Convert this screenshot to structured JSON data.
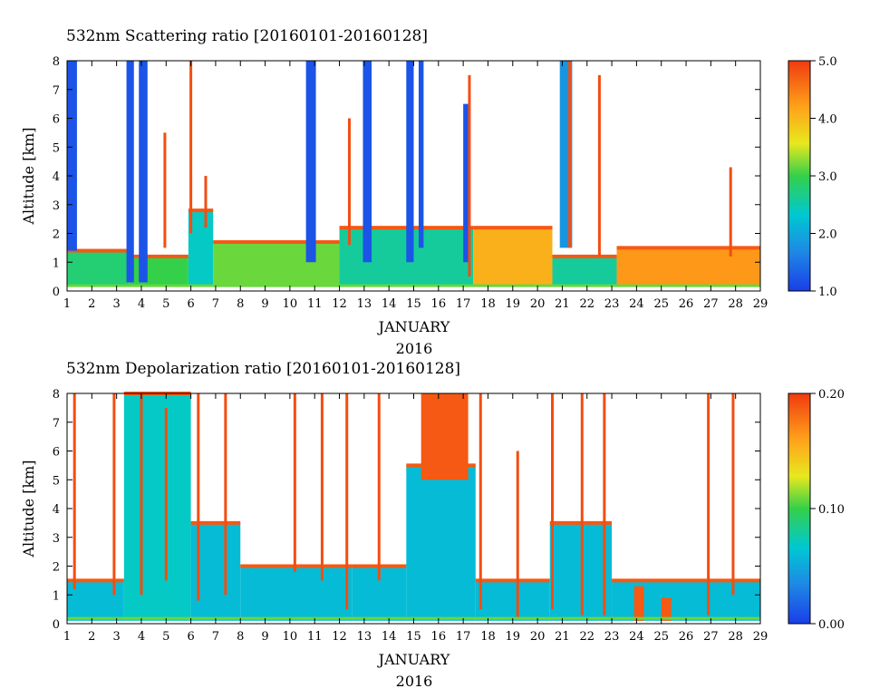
{
  "chart_data": [
    {
      "type": "heatmap",
      "title": "532nm Scattering ratio [20160101-20160128]",
      "xlabel": "JANUARY",
      "xlabel2": "2016",
      "ylabel": "Altitude [km]",
      "x_ticks": [
        "1",
        "2",
        "3",
        "4",
        "5",
        "6",
        "7",
        "8",
        "9",
        "10",
        "11",
        "12",
        "13",
        "14",
        "15",
        "16",
        "17",
        "18",
        "19",
        "20",
        "21",
        "22",
        "23",
        "24",
        "25",
        "26",
        "27",
        "28",
        "29"
      ],
      "y_ticks": [
        "0",
        "1",
        "2",
        "3",
        "4",
        "5",
        "6",
        "7",
        "8"
      ],
      "xlim": [
        1,
        29
      ],
      "ylim": [
        0,
        8
      ],
      "colorbar": {
        "min": 1.0,
        "max": 5.0,
        "ticks": [
          "1.0",
          "2.0",
          "3.0",
          "4.0",
          "5.0"
        ]
      },
      "grid": false,
      "legend": "right-colorbar",
      "colormap": [
        "#1a3ee8",
        "#1e88e5",
        "#00c8d2",
        "#34d04a",
        "#e8e81e",
        "#ffa21a",
        "#f03a10"
      ],
      "layers": [
        {
          "x0": 1.0,
          "x1": 3.5,
          "y0": 0.2,
          "y1": 1.4,
          "v": 0.45
        },
        {
          "x0": 3.5,
          "x1": 5.9,
          "y0": 0.2,
          "y1": 1.2,
          "v": 0.5
        },
        {
          "x0": 5.9,
          "x1": 6.9,
          "y0": 0.2,
          "y1": 2.8,
          "v": 0.35
        },
        {
          "x0": 6.9,
          "x1": 12.0,
          "y0": 0.2,
          "y1": 1.7,
          "v": 0.55
        },
        {
          "x0": 12.0,
          "x1": 17.4,
          "y0": 0.2,
          "y1": 2.2,
          "v": 0.4
        },
        {
          "x0": 17.4,
          "x1": 20.6,
          "y0": 0.2,
          "y1": 2.2,
          "v": 0.8
        },
        {
          "x0": 20.6,
          "x1": 23.2,
          "y0": 0.2,
          "y1": 1.2,
          "v": 0.4
        },
        {
          "x0": 23.2,
          "x1": 29.0,
          "y0": 0.2,
          "y1": 1.5,
          "v": 0.85
        }
      ],
      "columns": [
        {
          "x0": 1.0,
          "x1": 1.4,
          "y0": 1.4,
          "y1": 8.0,
          "v": 0.05
        },
        {
          "x0": 3.4,
          "x1": 3.7,
          "y0": 0.3,
          "y1": 8.0,
          "v": 0.05
        },
        {
          "x0": 3.9,
          "x1": 4.25,
          "y0": 0.3,
          "y1": 8.0,
          "v": 0.05
        },
        {
          "x0": 10.65,
          "x1": 11.05,
          "y0": 1.0,
          "y1": 8.0,
          "v": 0.05
        },
        {
          "x0": 12.95,
          "x1": 13.3,
          "y0": 1.0,
          "y1": 8.0,
          "v": 0.05
        },
        {
          "x0": 14.7,
          "x1": 15.0,
          "y0": 1.0,
          "y1": 8.0,
          "v": 0.05
        },
        {
          "x0": 15.2,
          "x1": 15.4,
          "y0": 1.5,
          "y1": 8.0,
          "v": 0.05
        },
        {
          "x0": 17.0,
          "x1": 17.3,
          "y0": 1.0,
          "y1": 6.5,
          "v": 0.05
        },
        {
          "x0": 20.9,
          "x1": 21.4,
          "y0": 1.5,
          "y1": 8.0,
          "v": 0.2
        }
      ],
      "streaks": [
        {
          "x": 4.95,
          "y0": 1.5,
          "y1": 5.5
        },
        {
          "x": 6.0,
          "y0": 2.0,
          "y1": 8.0
        },
        {
          "x": 6.6,
          "y0": 2.2,
          "y1": 4.0
        },
        {
          "x": 12.4,
          "y0": 1.6,
          "y1": 6.0
        },
        {
          "x": 17.25,
          "y0": 0.5,
          "y1": 7.5
        },
        {
          "x": 21.3,
          "y0": 1.5,
          "y1": 8.0
        },
        {
          "x": 22.5,
          "y0": 1.2,
          "y1": 7.5
        },
        {
          "x": 27.8,
          "y0": 1.2,
          "y1": 4.3
        }
      ]
    },
    {
      "type": "heatmap",
      "title": "532nm Depolarization ratio [20160101-20160128]",
      "xlabel": "JANUARY",
      "xlabel2": "2016",
      "ylabel": "Altitude [km]",
      "x_ticks": [
        "1",
        "2",
        "3",
        "4",
        "5",
        "6",
        "7",
        "8",
        "9",
        "10",
        "11",
        "12",
        "13",
        "14",
        "15",
        "16",
        "17",
        "18",
        "19",
        "20",
        "21",
        "22",
        "23",
        "24",
        "25",
        "26",
        "27",
        "28",
        "29"
      ],
      "y_ticks": [
        "0",
        "1",
        "2",
        "3",
        "4",
        "5",
        "6",
        "7",
        "8"
      ],
      "xlim": [
        1,
        29
      ],
      "ylim": [
        0,
        8
      ],
      "colorbar": {
        "min": 0.0,
        "max": 0.2,
        "ticks": [
          "0.00",
          "0.10",
          "0.20"
        ]
      },
      "grid": false,
      "legend": "right-colorbar",
      "colormap": [
        "#1a3ee8",
        "#1e88e5",
        "#00c8d2",
        "#34d04a",
        "#e8e81e",
        "#ffa21a",
        "#f03a10"
      ],
      "layers": [
        {
          "x0": 1.0,
          "x1": 3.3,
          "y0": 0.1,
          "y1": 1.5,
          "v": 0.3
        },
        {
          "x0": 3.3,
          "x1": 6.0,
          "y0": 0.1,
          "y1": 8.0,
          "v": 0.35
        },
        {
          "x0": 6.0,
          "x1": 8.0,
          "y0": 0.1,
          "y1": 3.5,
          "v": 0.3
        },
        {
          "x0": 8.0,
          "x1": 12.5,
          "y0": 0.1,
          "y1": 2.0,
          "v": 0.3
        },
        {
          "x0": 12.5,
          "x1": 14.7,
          "y0": 0.1,
          "y1": 2.0,
          "v": 0.3
        },
        {
          "x0": 14.7,
          "x1": 17.5,
          "y0": 0.1,
          "y1": 5.5,
          "v": 0.3
        },
        {
          "x0": 17.5,
          "x1": 20.5,
          "y0": 0.1,
          "y1": 1.5,
          "v": 0.3
        },
        {
          "x0": 20.5,
          "x1": 23.0,
          "y0": 0.1,
          "y1": 3.5,
          "v": 0.3
        },
        {
          "x0": 23.0,
          "x1": 29.0,
          "y0": 0.1,
          "y1": 1.5,
          "v": 0.3
        }
      ],
      "columns": [
        {
          "x0": 15.3,
          "x1": 17.2,
          "y0": 5.0,
          "y1": 8.0,
          "v": 0.95
        },
        {
          "x0": 23.9,
          "x1": 24.3,
          "y0": 0.1,
          "y1": 1.3,
          "v": 0.95
        },
        {
          "x0": 25.0,
          "x1": 25.4,
          "y0": 0.1,
          "y1": 0.9,
          "v": 0.95
        }
      ],
      "streaks": [
        {
          "x": 1.3,
          "y0": 1.2,
          "y1": 8.0
        },
        {
          "x": 2.9,
          "y0": 1.0,
          "y1": 8.0
        },
        {
          "x": 4.0,
          "y0": 1.0,
          "y1": 8.0
        },
        {
          "x": 5.0,
          "y0": 1.5,
          "y1": 7.5
        },
        {
          "x": 6.3,
          "y0": 0.8,
          "y1": 8.0
        },
        {
          "x": 7.4,
          "y0": 1.0,
          "y1": 8.0
        },
        {
          "x": 10.2,
          "y0": 1.8,
          "y1": 8.0
        },
        {
          "x": 11.3,
          "y0": 1.5,
          "y1": 8.0
        },
        {
          "x": 12.3,
          "y0": 0.5,
          "y1": 8.0
        },
        {
          "x": 13.6,
          "y0": 1.5,
          "y1": 8.0
        },
        {
          "x": 17.7,
          "y0": 0.5,
          "y1": 8.0
        },
        {
          "x": 19.2,
          "y0": 0.2,
          "y1": 6.0
        },
        {
          "x": 20.6,
          "y0": 0.5,
          "y1": 8.0
        },
        {
          "x": 21.8,
          "y0": 0.3,
          "y1": 8.0
        },
        {
          "x": 22.7,
          "y0": 0.3,
          "y1": 8.0
        },
        {
          "x": 26.9,
          "y0": 0.3,
          "y1": 8.0
        },
        {
          "x": 27.9,
          "y0": 1.0,
          "y1": 8.0
        }
      ]
    }
  ]
}
